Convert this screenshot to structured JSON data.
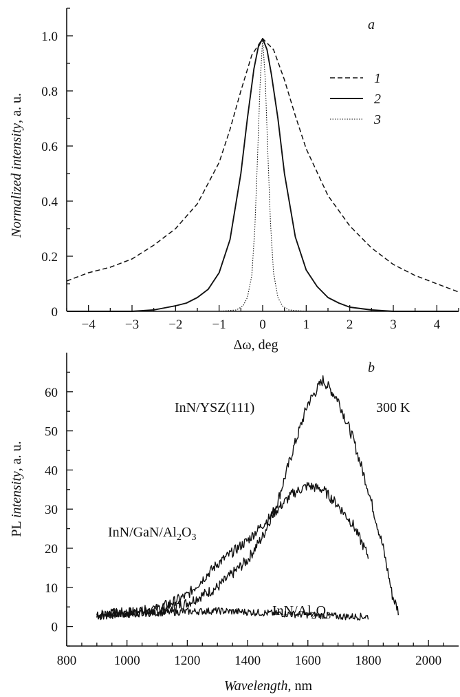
{
  "chart_data": [
    {
      "panel": "a",
      "type": "line",
      "ylabel_text": "intensity",
      "ylabel_prefix": "Normalized",
      "ylabel_suffix": ", a. u.",
      "xlabel": "Δω, deg",
      "xlim": [
        -4.5,
        4.5
      ],
      "ylim": [
        0,
        1.1
      ],
      "xticks": [
        -4,
        -3,
        -2,
        -1,
        0,
        1,
        2,
        3,
        4
      ],
      "xtick_labels": [
        "−4",
        "−3",
        "−2",
        "−1",
        "0",
        "1",
        "2",
        "3",
        "4"
      ],
      "yticks": [
        0,
        0.2,
        0.4,
        0.6,
        0.8,
        1.0
      ],
      "ytick_labels": [
        "0",
        "0.2",
        "0.4",
        "0.6",
        "0.8",
        "1.0"
      ],
      "legend_position": "top-right",
      "series": [
        {
          "name": "1",
          "style": "dashed",
          "x": [
            -4.5,
            -4,
            -3.5,
            -3,
            -2.5,
            -2,
            -1.5,
            -1,
            -0.75,
            -0.5,
            -0.25,
            0,
            0.25,
            0.5,
            0.75,
            1,
            1.5,
            2,
            2.5,
            3,
            3.5,
            4,
            4.5
          ],
          "y": [
            0.11,
            0.14,
            0.16,
            0.19,
            0.24,
            0.3,
            0.39,
            0.54,
            0.66,
            0.8,
            0.93,
            0.99,
            0.95,
            0.84,
            0.71,
            0.59,
            0.42,
            0.31,
            0.23,
            0.17,
            0.13,
            0.1,
            0.07
          ]
        },
        {
          "name": "2",
          "style": "solid",
          "x": [
            -4.5,
            -3,
            -2.5,
            -2,
            -1.75,
            -1.5,
            -1.25,
            -1,
            -0.75,
            -0.5,
            -0.35,
            -0.2,
            -0.1,
            0,
            0.1,
            0.2,
            0.35,
            0.5,
            0.75,
            1,
            1.25,
            1.5,
            1.75,
            2,
            2.5,
            3,
            4.5
          ],
          "y": [
            0,
            0,
            0.005,
            0.02,
            0.03,
            0.05,
            0.08,
            0.14,
            0.26,
            0.5,
            0.7,
            0.88,
            0.96,
            0.99,
            0.95,
            0.86,
            0.7,
            0.5,
            0.27,
            0.15,
            0.09,
            0.05,
            0.03,
            0.015,
            0.005,
            0,
            0
          ]
        },
        {
          "name": "3",
          "style": "dotted",
          "x": [
            -4.5,
            -1,
            -0.6,
            -0.45,
            -0.35,
            -0.25,
            -0.18,
            -0.12,
            -0.06,
            0,
            0.06,
            0.12,
            0.18,
            0.25,
            0.35,
            0.45,
            0.6,
            1,
            4.5
          ],
          "y": [
            0,
            0,
            0.005,
            0.02,
            0.05,
            0.13,
            0.3,
            0.55,
            0.82,
            0.99,
            0.84,
            0.57,
            0.32,
            0.14,
            0.05,
            0.02,
            0.005,
            0,
            0
          ]
        }
      ]
    },
    {
      "panel": "b",
      "type": "line",
      "ylabel_prefix": "PL",
      "ylabel_text": "intensity",
      "ylabel_suffix": ", a. u.",
      "xlabel_text": "Wavelength",
      "xlabel_suffix": ", nm",
      "xlim": [
        800,
        2100
      ],
      "ylim": [
        -5,
        70
      ],
      "xticks": [
        800,
        1000,
        1200,
        1400,
        1600,
        1800,
        2000
      ],
      "xtick_labels": [
        "800",
        "1000",
        "1200",
        "1400",
        "1600",
        "1800",
        "2000"
      ],
      "yticks": [
        0,
        10,
        20,
        30,
        40,
        50,
        60
      ],
      "ytick_labels": [
        "0",
        "10",
        "20",
        "30",
        "40",
        "50",
        "60"
      ],
      "annotation": "300 K",
      "series": [
        {
          "name": "InN/YSZ(111)",
          "label_lines": [
            "InN/YSZ(111)"
          ],
          "x": [
            900,
            1000,
            1100,
            1200,
            1300,
            1400,
            1450,
            1500,
            1550,
            1600,
            1650,
            1700,
            1750,
            1800,
            1850,
            1880,
            1900
          ],
          "y": [
            3,
            3.5,
            4,
            6,
            10,
            17,
            23,
            32,
            45,
            57,
            63,
            58,
            48,
            35,
            20,
            8,
            4
          ]
        },
        {
          "name": "InN/GaN/Al2O3",
          "label_lines": [
            "InN/GaN/Al",
            "2",
            "O",
            "3"
          ],
          "x": [
            900,
            1000,
            1100,
            1200,
            1250,
            1300,
            1350,
            1400,
            1450,
            1500,
            1550,
            1600,
            1650,
            1700,
            1750,
            1800
          ],
          "y": [
            3,
            3.5,
            4.5,
            8,
            12,
            16,
            19,
            22,
            26,
            30,
            34,
            36,
            35,
            31,
            26,
            18
          ]
        },
        {
          "name": "InN/Al2O3",
          "label_lines": [
            "InN/Al",
            "2",
            "O",
            "3"
          ],
          "x": [
            900,
            1000,
            1100,
            1200,
            1300,
            1400,
            1500,
            1600,
            1700,
            1800
          ],
          "y": [
            3,
            3.2,
            3.5,
            3.8,
            4,
            3.7,
            3.3,
            3,
            2.6,
            2.5
          ]
        }
      ]
    }
  ]
}
